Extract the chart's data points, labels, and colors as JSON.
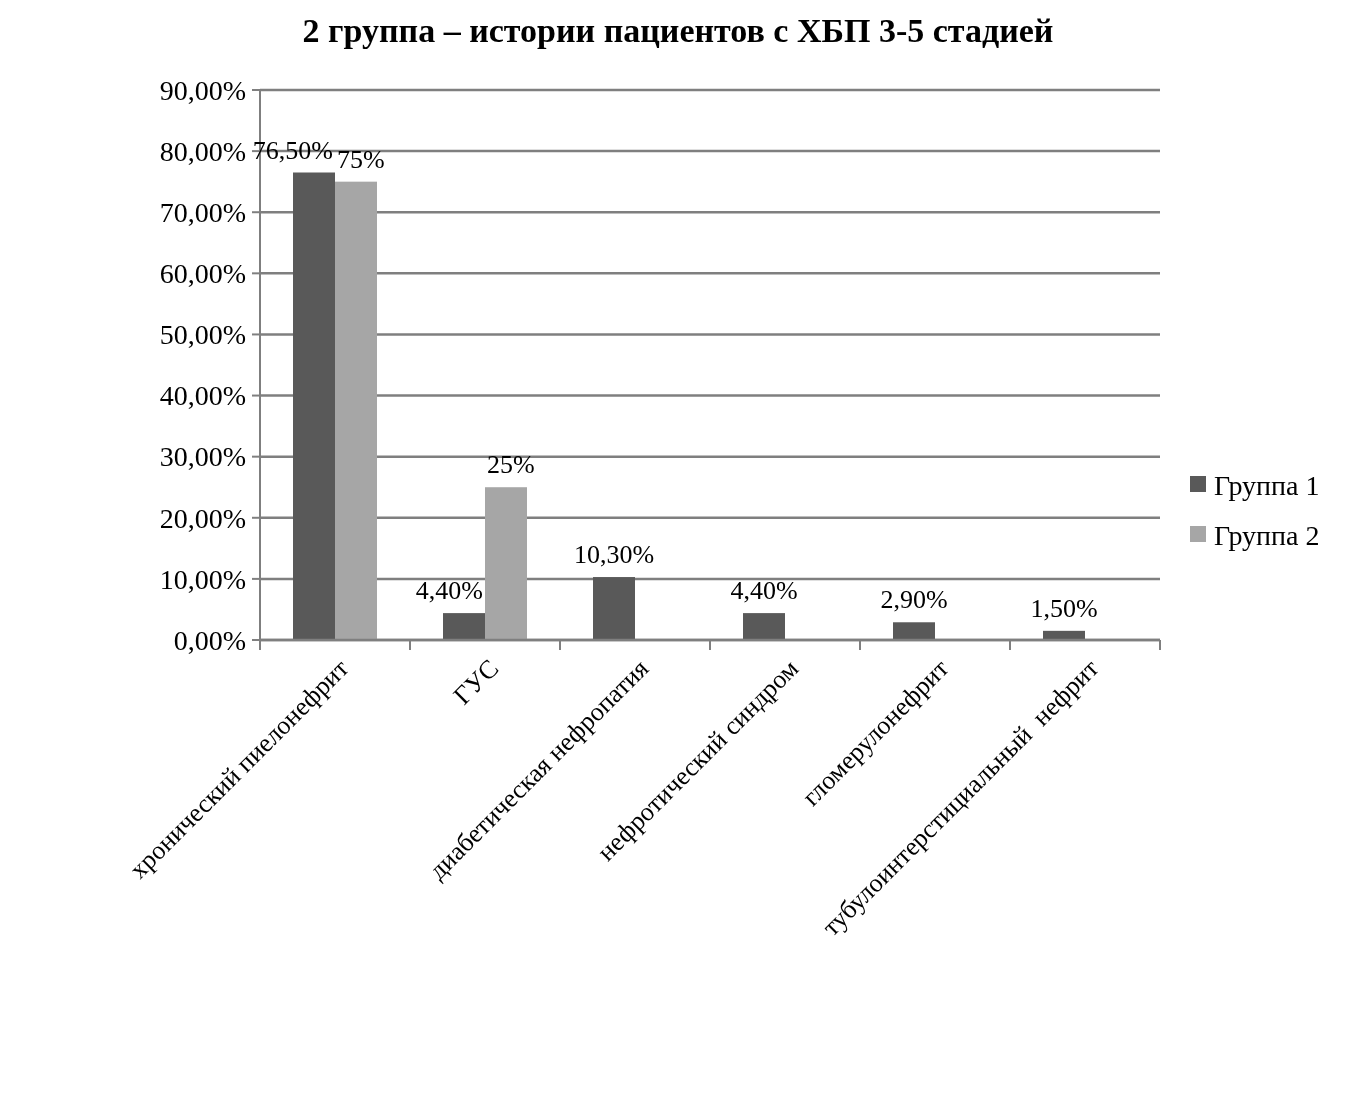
{
  "chart_data": {
    "type": "bar",
    "title": "2 группа – истории пациентов с ХБП 3-5 стадией",
    "categories": [
      "хронический пиелонефрит",
      "ГУС",
      "диабетическая нефропатия",
      "нефротический синдром",
      "гломерулонефрит",
      "тубулоинтерстициальный  нефрит"
    ],
    "series": [
      {
        "name": "Группа 1",
        "color": "#595959",
        "values": [
          76.5,
          4.4,
          10.3,
          4.4,
          2.9,
          1.5
        ],
        "value_labels": [
          "76,50%",
          "4,40%",
          "10,30%",
          "4,40%",
          "2,90%",
          "1,50%"
        ]
      },
      {
        "name": "Группа 2",
        "color": "#a6a6a6",
        "values": [
          75,
          25,
          null,
          null,
          null,
          null
        ],
        "value_labels": [
          "75%",
          "25%",
          null,
          null,
          null,
          null
        ]
      }
    ],
    "ylim": [
      0,
      90
    ],
    "yticks": [
      {
        "value": 0,
        "label": "0,00%"
      },
      {
        "value": 10,
        "label": "10,00%"
      },
      {
        "value": 20,
        "label": "20,00%"
      },
      {
        "value": 30,
        "label": "30,00%"
      },
      {
        "value": 40,
        "label": "40,00%"
      },
      {
        "value": 50,
        "label": "50,00%"
      },
      {
        "value": 60,
        "label": "60,00%"
      },
      {
        "value": 70,
        "label": "70,00%"
      },
      {
        "value": 80,
        "label": "80,00%"
      },
      {
        "value": 90,
        "label": "90,00%"
      }
    ],
    "grid": "y",
    "legend": "right"
  }
}
